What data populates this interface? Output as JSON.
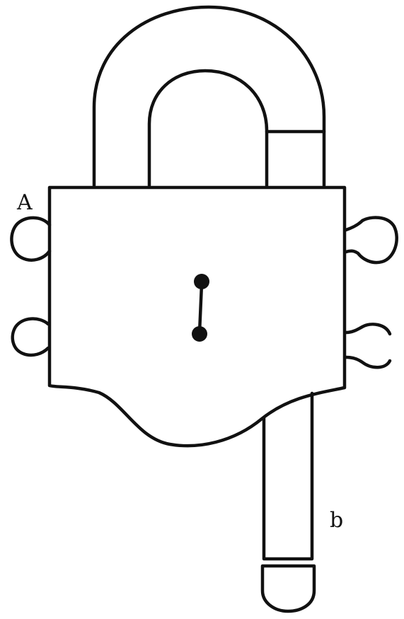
{
  "diagram": {
    "labels": {
      "a": "A",
      "b": "b"
    },
    "colors": {
      "ink": "#111111",
      "background": "#ffffff"
    }
  }
}
